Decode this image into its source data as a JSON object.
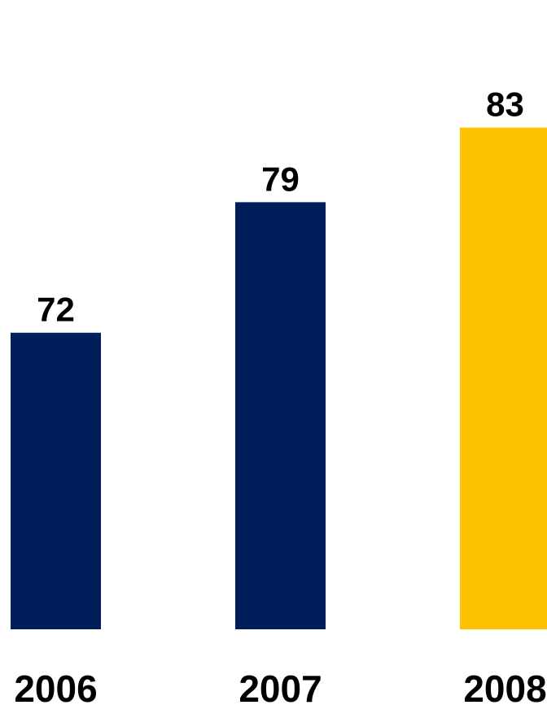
{
  "chart_data": {
    "type": "bar",
    "categories": [
      "2006",
      "2007",
      "2008"
    ],
    "values": [
      72,
      79,
      83
    ],
    "bar_colors": [
      "#001E5A",
      "#001E5A",
      "#FCC200"
    ],
    "title": "",
    "xlabel": "",
    "ylabel": "",
    "grid": false,
    "legend": "none"
  }
}
